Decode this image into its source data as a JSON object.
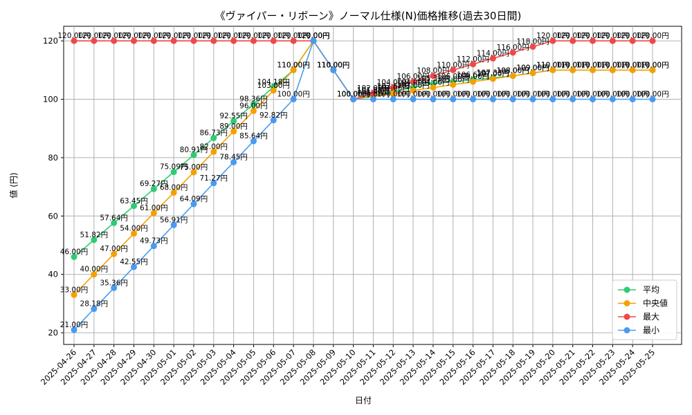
{
  "chart_data": {
    "type": "line",
    "title": "《ヴァイパー・リボーン》ノーマル仕様(N)価格推移(過去30日間)",
    "xlabel": "日付",
    "ylabel": "値 (円)",
    "ylim": [
      16,
      125
    ],
    "yticks": [
      20,
      40,
      60,
      80,
      100,
      120
    ],
    "grid": true,
    "legend_position": "bottom-right",
    "label_suffix": "円",
    "categories": [
      "2025-04-26",
      "2025-04-27",
      "2025-04-28",
      "2025-04-29",
      "2025-04-30",
      "2025-05-01",
      "2025-05-02",
      "2025-05-03",
      "2025-05-04",
      "2025-05-05",
      "2025-05-06",
      "2025-05-07",
      "2025-05-08",
      "2025-05-09",
      "2025-05-10",
      "2025-05-11",
      "2025-05-12",
      "2025-05-13",
      "2025-05-14",
      "2025-05-15",
      "2025-05-16",
      "2025-05-17",
      "2025-05-18",
      "2025-05-19",
      "2025-05-20",
      "2025-05-21",
      "2025-05-22",
      "2025-05-23",
      "2025-05-24",
      "2025-05-25"
    ],
    "series": [
      {
        "name": "平均",
        "color": "#2ecc71",
        "values": [
          46.0,
          51.82,
          57.64,
          63.45,
          69.27,
          75.09,
          80.91,
          86.73,
          92.55,
          98.36,
          104.18,
          110.0,
          120.0,
          110.0,
          100.0,
          101.33,
          102.67,
          104.0,
          105.33,
          106.0,
          106.67,
          107.33,
          108.0,
          109.0,
          110.0,
          110.0,
          110.0,
          110.0,
          110.0,
          110.0
        ]
      },
      {
        "name": "中央値",
        "color": "#f5a000",
        "values": [
          33.0,
          40.0,
          47.0,
          54.0,
          61.0,
          68.0,
          75.0,
          82.0,
          89.0,
          96.0,
          103.0,
          110.0,
          120.0,
          110.0,
          100.0,
          101.0,
          102.0,
          103.0,
          104.0,
          105.0,
          106.0,
          107.0,
          108.0,
          109.0,
          110.0,
          110.0,
          110.0,
          110.0,
          110.0,
          110.0
        ]
      },
      {
        "name": "最大",
        "color": "#f04848",
        "values": [
          120.0,
          120.0,
          120.0,
          120.0,
          120.0,
          120.0,
          120.0,
          120.0,
          120.0,
          120.0,
          120.0,
          120.0,
          120.0,
          110.0,
          100.0,
          102.0,
          104.0,
          106.0,
          108.0,
          110.0,
          112.0,
          114.0,
          116.0,
          118.0,
          120.0,
          120.0,
          120.0,
          120.0,
          120.0,
          120.0
        ]
      },
      {
        "name": "最小",
        "color": "#4a9af0",
        "values": [
          21.0,
          28.18,
          35.36,
          42.55,
          49.73,
          56.91,
          64.09,
          71.27,
          78.45,
          85.64,
          92.82,
          100.0,
          120.0,
          110.0,
          100.0,
          100.0,
          100.0,
          100.0,
          100.0,
          100.0,
          100.0,
          100.0,
          100.0,
          100.0,
          100.0,
          100.0,
          100.0,
          100.0,
          100.0,
          100.0
        ]
      }
    ]
  }
}
